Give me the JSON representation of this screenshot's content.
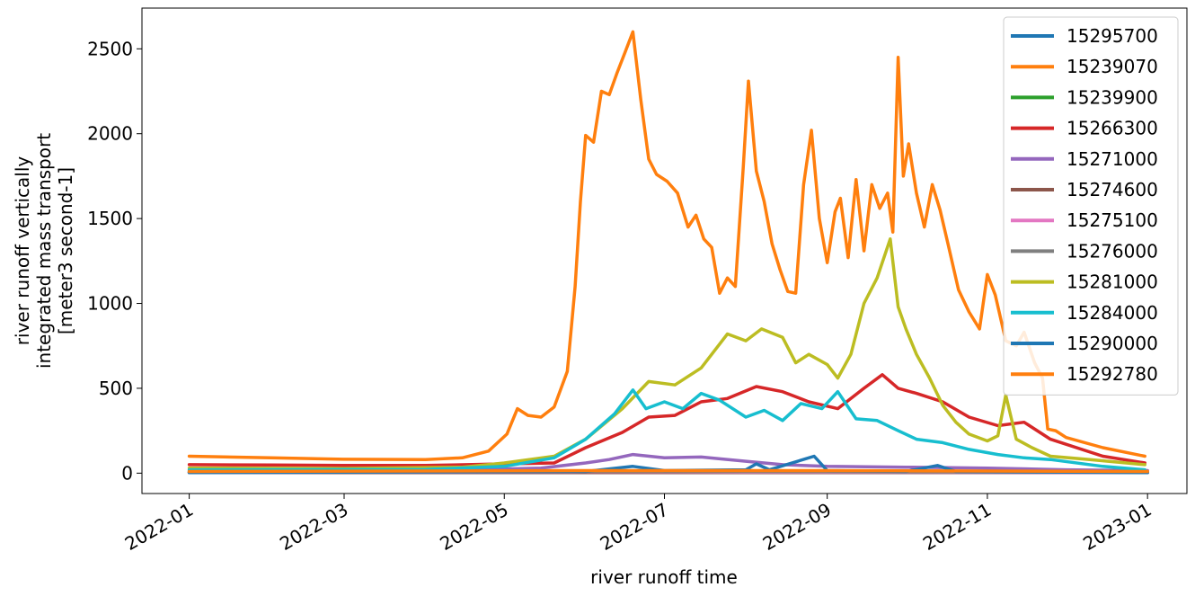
{
  "chart_data": {
    "type": "line",
    "title": "",
    "xlabel": "river runoff time",
    "ylabel_lines": [
      "river runoff vertically",
      "integrated mass transport",
      "[meter3 second-1]"
    ],
    "x_ticks": [
      "2022-01",
      "2022-03",
      "2022-05",
      "2022-07",
      "2022-09",
      "2022-11",
      "2023-01"
    ],
    "y_ticks": [
      "0",
      "500",
      "1000",
      "1500",
      "2000",
      "2500"
    ],
    "ylim": [
      -120,
      2740
    ],
    "xlim": [
      "2021-12-14",
      "2023-01-16"
    ],
    "grid": false,
    "legend_position": "top-right",
    "series": [
      {
        "name": "15295700",
        "color": "#1f77b4",
        "points": [
          [
            "2022-01-01",
            8
          ],
          [
            "2022-03-01",
            8
          ],
          [
            "2022-05-01",
            9
          ],
          [
            "2022-06-01",
            12
          ],
          [
            "2022-07-01",
            14
          ],
          [
            "2022-08-01",
            12
          ],
          [
            "2022-09-01",
            10
          ],
          [
            "2022-11-01",
            9
          ],
          [
            "2023-01-01",
            8
          ]
        ]
      },
      {
        "name": "15239070",
        "color": "#ff7f0e",
        "points": [
          [
            "2022-01-01",
            100
          ],
          [
            "2022-02-01",
            90
          ],
          [
            "2022-03-01",
            82
          ],
          [
            "2022-04-01",
            80
          ],
          [
            "2022-04-15",
            90
          ],
          [
            "2022-04-25",
            130
          ],
          [
            "2022-05-02",
            230
          ],
          [
            "2022-05-06",
            380
          ],
          [
            "2022-05-10",
            340
          ],
          [
            "2022-05-15",
            330
          ],
          [
            "2022-05-20",
            390
          ],
          [
            "2022-05-25",
            600
          ],
          [
            "2022-05-28",
            1100
          ],
          [
            "2022-05-30",
            1600
          ],
          [
            "2022-06-01",
            1990
          ],
          [
            "2022-06-04",
            1950
          ],
          [
            "2022-06-07",
            2250
          ],
          [
            "2022-06-10",
            2230
          ],
          [
            "2022-06-13",
            2360
          ],
          [
            "2022-06-16",
            2480
          ],
          [
            "2022-06-19",
            2600
          ],
          [
            "2022-06-22",
            2200
          ],
          [
            "2022-06-25",
            1850
          ],
          [
            "2022-06-28",
            1760
          ],
          [
            "2022-07-02",
            1720
          ],
          [
            "2022-07-06",
            1650
          ],
          [
            "2022-07-10",
            1450
          ],
          [
            "2022-07-13",
            1520
          ],
          [
            "2022-07-16",
            1380
          ],
          [
            "2022-07-19",
            1330
          ],
          [
            "2022-07-22",
            1060
          ],
          [
            "2022-07-25",
            1150
          ],
          [
            "2022-07-28",
            1100
          ],
          [
            "2022-07-31",
            1800
          ],
          [
            "2022-08-02",
            2310
          ],
          [
            "2022-08-05",
            1780
          ],
          [
            "2022-08-08",
            1600
          ],
          [
            "2022-08-11",
            1350
          ],
          [
            "2022-08-14",
            1200
          ],
          [
            "2022-08-17",
            1070
          ],
          [
            "2022-08-20",
            1060
          ],
          [
            "2022-08-23",
            1700
          ],
          [
            "2022-08-26",
            2020
          ],
          [
            "2022-08-29",
            1500
          ],
          [
            "2022-09-01",
            1240
          ],
          [
            "2022-09-04",
            1540
          ],
          [
            "2022-09-06",
            1620
          ],
          [
            "2022-09-09",
            1270
          ],
          [
            "2022-09-12",
            1730
          ],
          [
            "2022-09-15",
            1310
          ],
          [
            "2022-09-18",
            1700
          ],
          [
            "2022-09-21",
            1560
          ],
          [
            "2022-09-24",
            1650
          ],
          [
            "2022-09-26",
            1420
          ],
          [
            "2022-09-28",
            2450
          ],
          [
            "2022-09-30",
            1750
          ],
          [
            "2022-10-02",
            1940
          ],
          [
            "2022-10-05",
            1650
          ],
          [
            "2022-10-08",
            1450
          ],
          [
            "2022-10-11",
            1700
          ],
          [
            "2022-10-14",
            1550
          ],
          [
            "2022-10-17",
            1350
          ],
          [
            "2022-10-21",
            1080
          ],
          [
            "2022-10-25",
            950
          ],
          [
            "2022-10-29",
            850
          ],
          [
            "2022-11-01",
            1170
          ],
          [
            "2022-11-04",
            1050
          ],
          [
            "2022-11-08",
            780
          ],
          [
            "2022-11-12",
            750
          ],
          [
            "2022-11-15",
            830
          ],
          [
            "2022-11-19",
            650
          ],
          [
            "2022-11-22",
            560
          ],
          [
            "2022-11-24",
            260
          ],
          [
            "2022-11-27",
            250
          ],
          [
            "2022-12-01",
            210
          ],
          [
            "2022-12-15",
            150
          ],
          [
            "2022-12-31",
            100
          ]
        ]
      },
      {
        "name": "15239900",
        "color": "#2ca02c",
        "points": [
          [
            "2022-01-01",
            5
          ],
          [
            "2022-06-01",
            6
          ],
          [
            "2022-09-01",
            6
          ],
          [
            "2023-01-01",
            5
          ]
        ]
      },
      {
        "name": "15266300",
        "color": "#d62728",
        "points": [
          [
            "2022-01-01",
            50
          ],
          [
            "2022-02-01",
            48
          ],
          [
            "2022-03-01",
            45
          ],
          [
            "2022-04-01",
            45
          ],
          [
            "2022-05-01",
            55
          ],
          [
            "2022-05-20",
            60
          ],
          [
            "2022-06-01",
            150
          ],
          [
            "2022-06-15",
            240
          ],
          [
            "2022-06-25",
            330
          ],
          [
            "2022-07-05",
            340
          ],
          [
            "2022-07-15",
            420
          ],
          [
            "2022-07-25",
            440
          ],
          [
            "2022-08-05",
            510
          ],
          [
            "2022-08-15",
            480
          ],
          [
            "2022-08-25",
            420
          ],
          [
            "2022-09-05",
            380
          ],
          [
            "2022-09-15",
            500
          ],
          [
            "2022-09-22",
            580
          ],
          [
            "2022-09-28",
            500
          ],
          [
            "2022-10-05",
            470
          ],
          [
            "2022-10-15",
            420
          ],
          [
            "2022-10-25",
            330
          ],
          [
            "2022-11-05",
            280
          ],
          [
            "2022-11-15",
            300
          ],
          [
            "2022-11-25",
            200
          ],
          [
            "2022-12-15",
            100
          ],
          [
            "2022-12-31",
            60
          ]
        ]
      },
      {
        "name": "15271000",
        "color": "#9467bd",
        "points": [
          [
            "2022-01-01",
            15
          ],
          [
            "2022-04-01",
            14
          ],
          [
            "2022-05-15",
            30
          ],
          [
            "2022-06-01",
            60
          ],
          [
            "2022-06-10",
            80
          ],
          [
            "2022-06-19",
            110
          ],
          [
            "2022-07-01",
            90
          ],
          [
            "2022-07-15",
            95
          ],
          [
            "2022-08-01",
            70
          ],
          [
            "2022-08-15",
            50
          ],
          [
            "2022-09-01",
            40
          ],
          [
            "2022-10-01",
            35
          ],
          [
            "2022-11-01",
            30
          ],
          [
            "2022-12-01",
            20
          ],
          [
            "2023-01-01",
            15
          ]
        ]
      },
      {
        "name": "15274600",
        "color": "#8c564b",
        "points": [
          [
            "2022-01-01",
            3
          ],
          [
            "2023-01-01",
            3
          ]
        ]
      },
      {
        "name": "15275100",
        "color": "#e377c2",
        "points": [
          [
            "2022-01-01",
            4
          ],
          [
            "2022-06-01",
            8
          ],
          [
            "2022-08-01",
            6
          ],
          [
            "2023-01-01",
            4
          ]
        ]
      },
      {
        "name": "15276000",
        "color": "#7f7f7f",
        "points": [
          [
            "2022-01-01",
            5
          ],
          [
            "2022-06-01",
            10
          ],
          [
            "2022-09-01",
            8
          ],
          [
            "2023-01-01",
            5
          ]
        ]
      },
      {
        "name": "15281000",
        "color": "#bcbd22",
        "points": [
          [
            "2022-01-01",
            30
          ],
          [
            "2022-03-01",
            28
          ],
          [
            "2022-04-15",
            35
          ],
          [
            "2022-05-01",
            60
          ],
          [
            "2022-05-20",
            100
          ],
          [
            "2022-06-01",
            200
          ],
          [
            "2022-06-15",
            380
          ],
          [
            "2022-06-25",
            540
          ],
          [
            "2022-07-05",
            520
          ],
          [
            "2022-07-15",
            620
          ],
          [
            "2022-07-25",
            820
          ],
          [
            "2022-08-01",
            780
          ],
          [
            "2022-08-07",
            850
          ],
          [
            "2022-08-15",
            800
          ],
          [
            "2022-08-20",
            650
          ],
          [
            "2022-08-25",
            700
          ],
          [
            "2022-09-01",
            640
          ],
          [
            "2022-09-05",
            560
          ],
          [
            "2022-09-10",
            700
          ],
          [
            "2022-09-15",
            1000
          ],
          [
            "2022-09-20",
            1150
          ],
          [
            "2022-09-25",
            1380
          ],
          [
            "2022-09-28",
            980
          ],
          [
            "2022-10-01",
            850
          ],
          [
            "2022-10-05",
            700
          ],
          [
            "2022-10-10",
            560
          ],
          [
            "2022-10-15",
            400
          ],
          [
            "2022-10-20",
            300
          ],
          [
            "2022-10-25",
            230
          ],
          [
            "2022-11-01",
            190
          ],
          [
            "2022-11-05",
            220
          ],
          [
            "2022-11-08",
            460
          ],
          [
            "2022-11-12",
            200
          ],
          [
            "2022-11-18",
            150
          ],
          [
            "2022-11-25",
            100
          ],
          [
            "2022-12-10",
            80
          ],
          [
            "2022-12-31",
            50
          ]
        ]
      },
      {
        "name": "15284000",
        "color": "#17becf",
        "points": [
          [
            "2022-01-01",
            20
          ],
          [
            "2022-04-01",
            22
          ],
          [
            "2022-05-01",
            40
          ],
          [
            "2022-05-20",
            90
          ],
          [
            "2022-06-01",
            200
          ],
          [
            "2022-06-12",
            350
          ],
          [
            "2022-06-19",
            490
          ],
          [
            "2022-06-24",
            380
          ],
          [
            "2022-07-01",
            420
          ],
          [
            "2022-07-08",
            380
          ],
          [
            "2022-07-15",
            470
          ],
          [
            "2022-07-22",
            430
          ],
          [
            "2022-08-01",
            330
          ],
          [
            "2022-08-08",
            370
          ],
          [
            "2022-08-15",
            310
          ],
          [
            "2022-08-22",
            410
          ],
          [
            "2022-08-30",
            380
          ],
          [
            "2022-09-05",
            480
          ],
          [
            "2022-09-12",
            320
          ],
          [
            "2022-09-20",
            310
          ],
          [
            "2022-09-28",
            250
          ],
          [
            "2022-10-05",
            200
          ],
          [
            "2022-10-15",
            180
          ],
          [
            "2022-10-25",
            140
          ],
          [
            "2022-11-05",
            110
          ],
          [
            "2022-11-15",
            90
          ],
          [
            "2022-11-25",
            80
          ],
          [
            "2022-12-15",
            40
          ],
          [
            "2022-12-31",
            20
          ]
        ]
      },
      {
        "name": "15290000",
        "color": "#1f77b4",
        "points": [
          [
            "2022-01-01",
            3
          ],
          [
            "2022-06-01",
            10
          ],
          [
            "2022-06-19",
            40
          ],
          [
            "2022-07-01",
            15
          ],
          [
            "2022-08-01",
            20
          ],
          [
            "2022-08-05",
            55
          ],
          [
            "2022-08-10",
            20
          ],
          [
            "2022-08-27",
            100
          ],
          [
            "2022-09-01",
            15
          ],
          [
            "2022-10-01",
            10
          ],
          [
            "2022-10-13",
            45
          ],
          [
            "2022-10-20",
            10
          ],
          [
            "2023-01-01",
            3
          ]
        ]
      },
      {
        "name": "15292780",
        "color": "#ff7f0e",
        "points": [
          [
            "2022-01-01",
            10
          ],
          [
            "2022-06-01",
            15
          ],
          [
            "2022-09-01",
            15
          ],
          [
            "2023-01-01",
            10
          ]
        ]
      }
    ]
  }
}
